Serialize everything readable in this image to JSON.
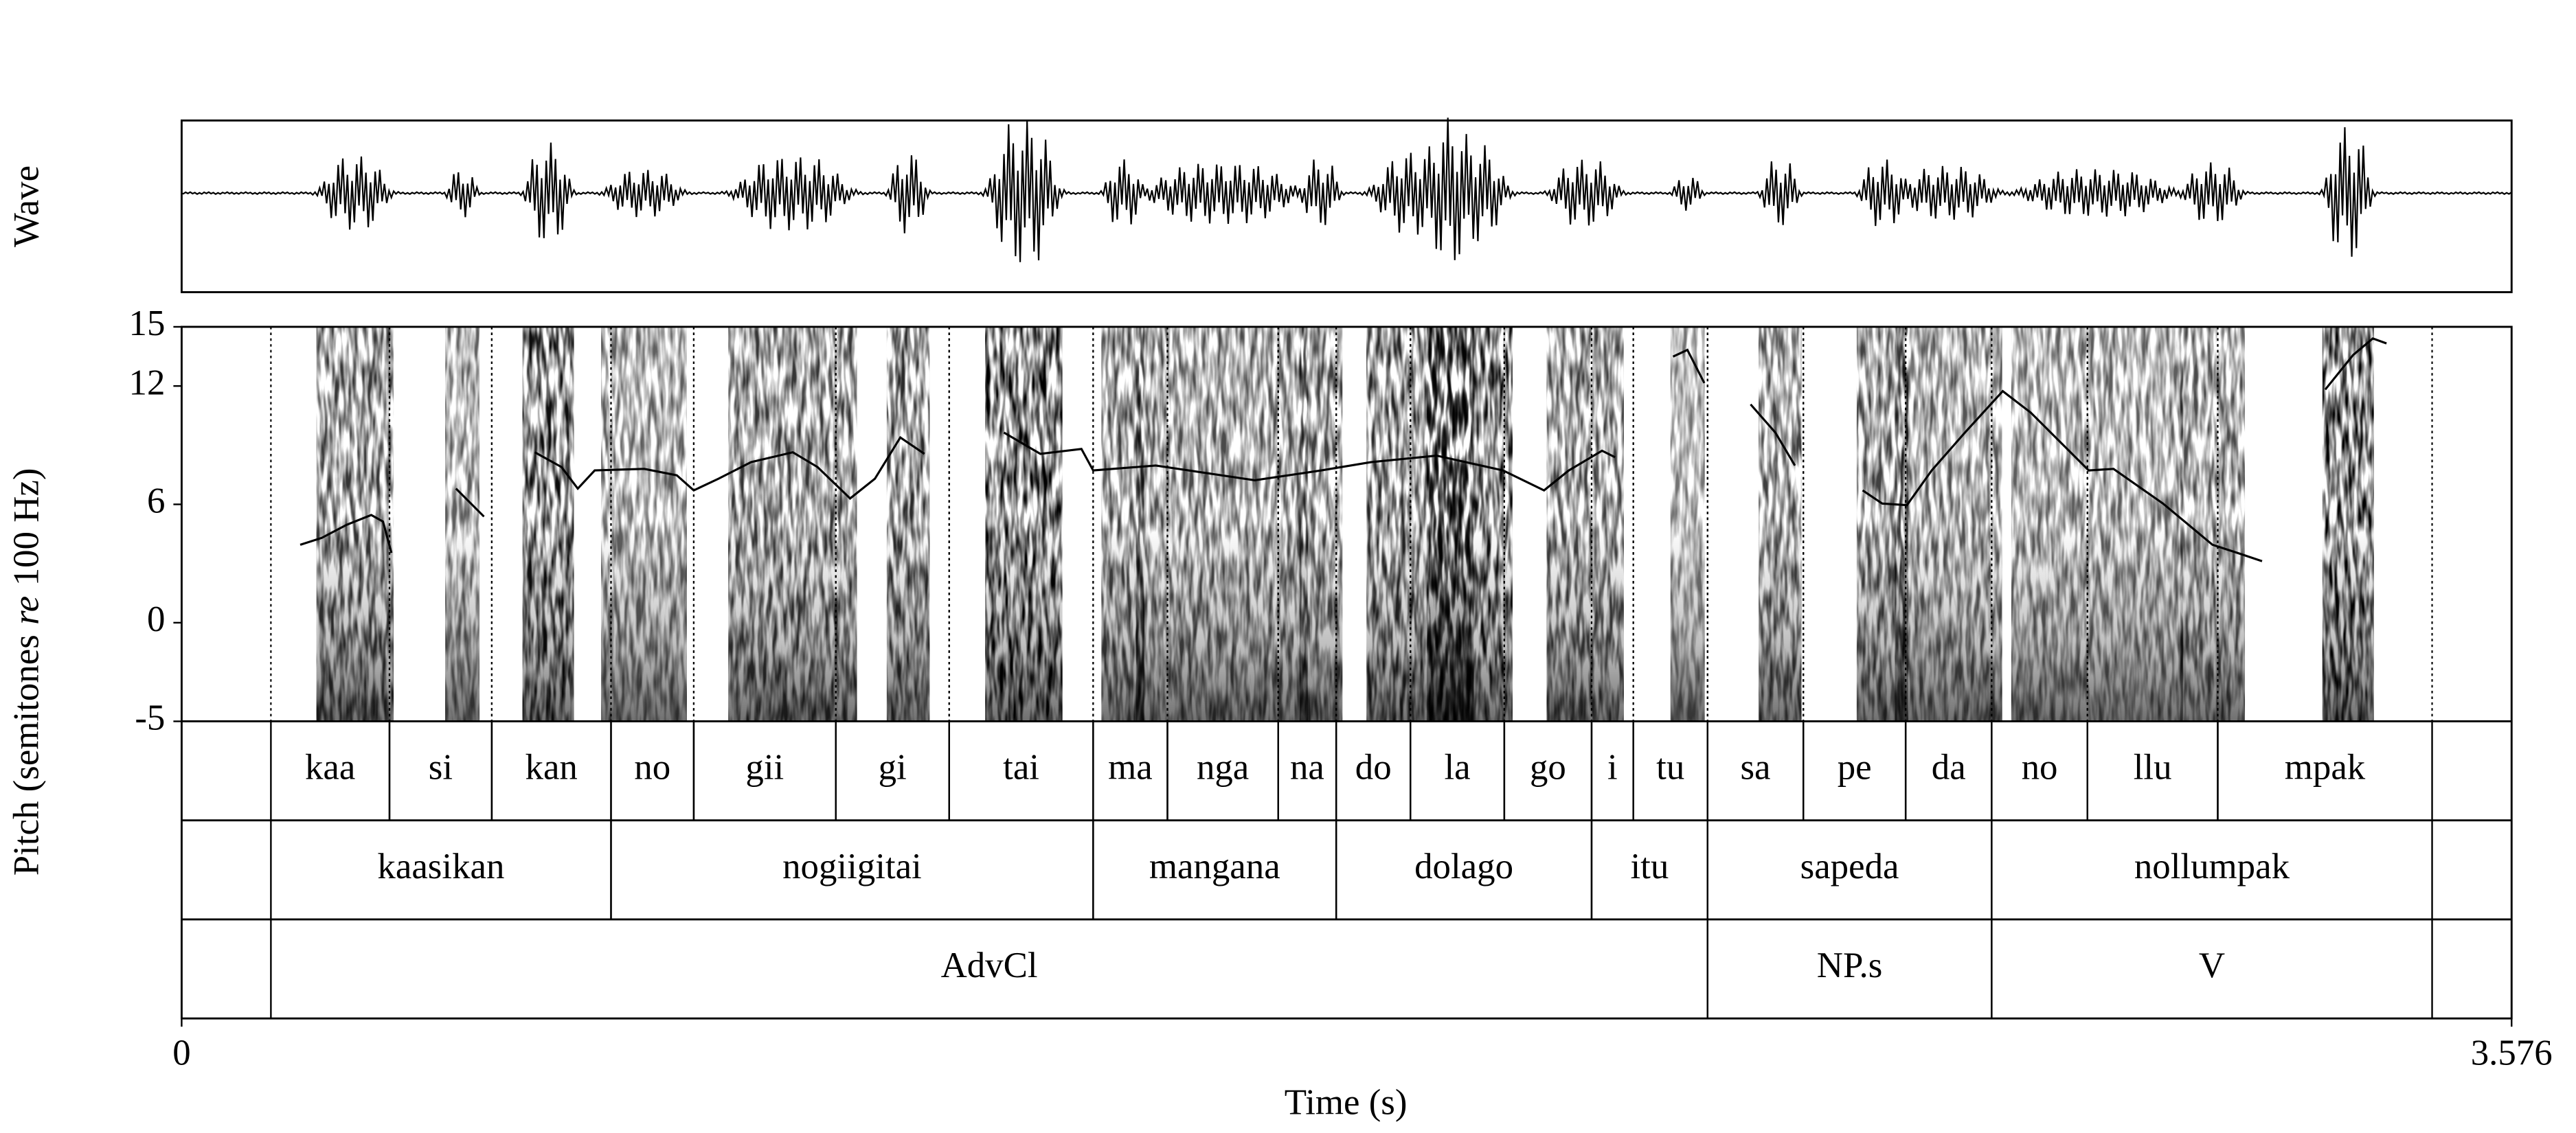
{
  "chart_data": {
    "type": "line",
    "wave_label": "Wave",
    "xlabel": "Time (s)",
    "ylabel": {
      "before": "Pitch (semitones",
      "italic": "re",
      "after": "100 Hz)"
    },
    "xlim": [
      0,
      3.576
    ],
    "xticks": [
      0,
      3.576
    ],
    "ylim": [
      -5,
      15
    ],
    "yticks": [
      -5,
      0,
      6,
      12,
      15
    ],
    "series": [
      {
        "color": "#000000",
        "x": [
          0.182,
          0.215,
          0.253,
          0.291,
          0.309,
          0.322,
          null,
          0.421,
          0.464,
          null,
          0.542,
          0.583,
          0.608,
          0.634,
          0.71,
          0.76,
          0.786,
          0.824,
          0.874,
          0.938,
          0.976,
          1.026,
          1.064,
          1.103,
          1.14,
          null,
          1.262,
          1.318,
          1.381,
          1.399,
          1.495,
          1.647,
          1.749,
          1.825,
          1.926,
          2.028,
          2.091,
          2.129,
          2.18,
          2.2,
          null,
          2.289,
          2.311,
          2.337,
          null,
          2.408,
          2.446,
          2.476,
          null,
          2.58,
          2.61,
          2.648,
          2.686,
          2.737,
          2.795,
          2.838,
          2.927,
          2.965,
          3.041,
          3.117,
          3.155,
          3.193,
          null,
          3.29,
          3.333,
          3.363,
          3.384
        ],
        "values": [
          3.95,
          4.3,
          4.96,
          5.46,
          5.13,
          3.54,
          null,
          6.8,
          5.38,
          null,
          8.64,
          7.89,
          6.8,
          7.72,
          7.8,
          7.47,
          6.71,
          7.3,
          8.14,
          8.64,
          7.89,
          6.3,
          7.3,
          9.39,
          8.56,
          null,
          9.64,
          8.56,
          8.81,
          7.72,
          7.97,
          7.22,
          7.72,
          8.14,
          8.47,
          7.72,
          6.71,
          7.72,
          8.72,
          8.39,
          null,
          13.49,
          13.83,
          12.15,
          null,
          11.07,
          9.64,
          7.97,
          null,
          6.71,
          6.04,
          5.96,
          7.72,
          9.64,
          11.74,
          10.65,
          7.72,
          7.8,
          6.04,
          3.95,
          3.54,
          3.12,
          null,
          11.82,
          13.58,
          14.41,
          14.16
        ]
      }
    ],
    "tiers": [
      {
        "intervals": [
          {
            "text": "kaa",
            "start": 0.137,
            "end": 0.319
          },
          {
            "text": "si",
            "start": 0.319,
            "end": 0.476
          },
          {
            "text": "kan",
            "start": 0.476,
            "end": 0.659
          },
          {
            "text": "no",
            "start": 0.659,
            "end": 0.786
          },
          {
            "text": "gii",
            "start": 0.786,
            "end": 1.004
          },
          {
            "text": "gi",
            "start": 1.004,
            "end": 1.178
          },
          {
            "text": "tai",
            "start": 1.178,
            "end": 1.399
          },
          {
            "text": "ma",
            "start": 1.399,
            "end": 1.513
          },
          {
            "text": "nga",
            "start": 1.513,
            "end": 1.683
          },
          {
            "text": "na",
            "start": 1.683,
            "end": 1.772
          },
          {
            "text": "do",
            "start": 1.772,
            "end": 1.886
          },
          {
            "text": "la",
            "start": 1.886,
            "end": 2.03
          },
          {
            "text": "go",
            "start": 2.03,
            "end": 2.164
          },
          {
            "text": "i",
            "start": 2.164,
            "end": 2.228
          },
          {
            "text": "tu",
            "start": 2.228,
            "end": 2.342
          },
          {
            "text": "sa",
            "start": 2.342,
            "end": 2.489
          },
          {
            "text": "pe",
            "start": 2.489,
            "end": 2.646
          },
          {
            "text": "da",
            "start": 2.646,
            "end": 2.778
          },
          {
            "text": "no",
            "start": 2.778,
            "end": 2.925
          },
          {
            "text": "llu",
            "start": 2.925,
            "end": 3.125
          },
          {
            "text": "mpak",
            "start": 3.125,
            "end": 3.454
          }
        ]
      },
      {
        "intervals": [
          {
            "text": "kaasikan",
            "start": 0.137,
            "end": 0.659
          },
          {
            "text": "nogiigitai",
            "start": 0.659,
            "end": 1.399
          },
          {
            "text": "mangana",
            "start": 1.399,
            "end": 1.772
          },
          {
            "text": "dolago",
            "start": 1.772,
            "end": 2.164
          },
          {
            "text": "itu",
            "start": 2.164,
            "end": 2.342
          },
          {
            "text": "sapeda",
            "start": 2.342,
            "end": 2.778
          },
          {
            "text": "nollumpak",
            "start": 2.778,
            "end": 3.454
          }
        ]
      },
      {
        "intervals": [
          {
            "text": "AdvCl",
            "start": 0.137,
            "end": 2.342
          },
          {
            "text": "NP.s",
            "start": 2.342,
            "end": 2.778
          },
          {
            "text": "V",
            "start": 2.778,
            "end": 3.454
          }
        ]
      }
    ]
  }
}
